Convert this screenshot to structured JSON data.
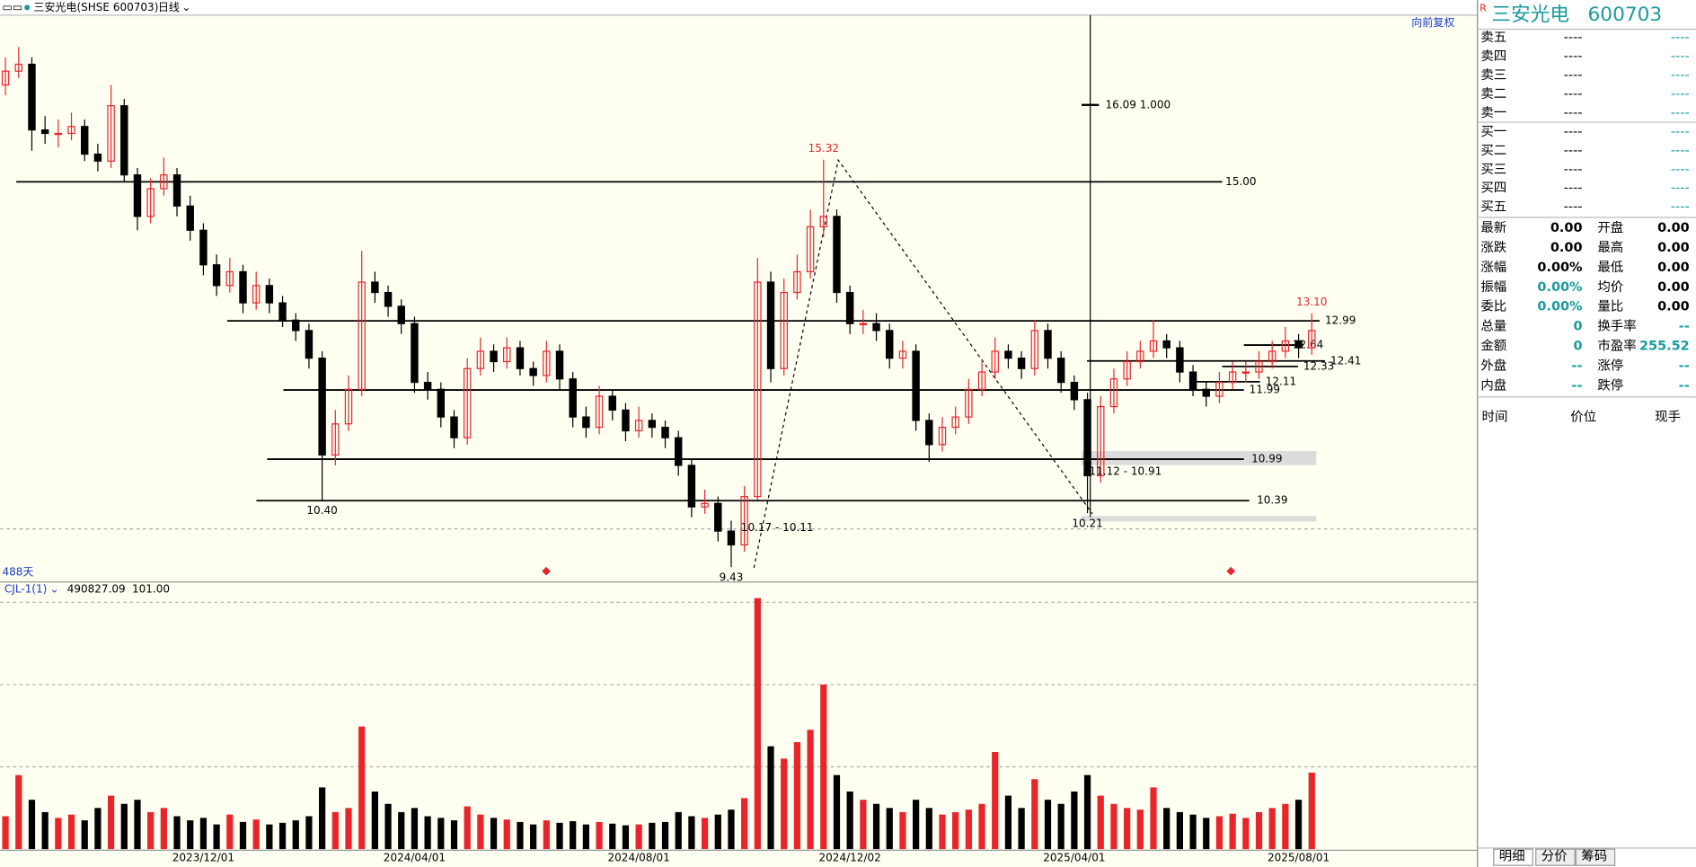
{
  "chart_data": {
    "type": "candlestick",
    "title": "三安光电(SHSE 600703)",
    "period": "日线",
    "adjust": "向前复权",
    "categories": [
      null,
      null,
      null,
      null,
      null,
      null,
      null,
      null,
      null,
      null,
      null,
      null,
      null,
      null,
      null,
      "2023/12/01",
      null,
      null,
      null,
      null,
      null,
      null,
      null,
      null,
      null,
      null,
      null,
      null,
      null,
      null,
      null,
      "2024/04/01",
      null,
      null,
      null,
      null,
      null,
      null,
      null,
      null,
      null,
      null,
      null,
      null,
      null,
      null,
      null,
      null,
      "2024/08/01",
      null,
      null,
      null,
      null,
      null,
      null,
      null,
      null,
      null,
      null,
      null,
      null,
      null,
      null,
      null,
      "2024/12/02",
      null,
      null,
      null,
      null,
      null,
      null,
      null,
      null,
      null,
      null,
      null,
      null,
      null,
      null,
      null,
      null,
      "2025/04/01",
      null,
      null,
      null,
      null,
      null,
      null,
      null,
      null,
      null,
      null,
      null,
      null,
      null,
      null,
      null,
      null,
      "2025/08/01",
      null
    ],
    "open": [
      16.4,
      16.6,
      16.7,
      15.75,
      15.7,
      15.7,
      15.8,
      15.4,
      15.3,
      16.1,
      15.1,
      14.5,
      14.9,
      15.1,
      14.65,
      14.3,
      13.8,
      13.5,
      13.7,
      13.25,
      13.5,
      13.25,
      13.0,
      12.85,
      12.45,
      11.05,
      11.5,
      12.0,
      13.55,
      13.4,
      13.2,
      12.95,
      12.1,
      12.0,
      11.6,
      11.3,
      12.3,
      12.55,
      12.4,
      12.6,
      12.3,
      12.2,
      12.55,
      12.15,
      11.6,
      11.45,
      11.9,
      11.7,
      11.4,
      11.55,
      11.45,
      11.3,
      10.9,
      10.3,
      10.35,
      9.95,
      9.75,
      10.45,
      13.55,
      12.3,
      13.4,
      13.7,
      14.35,
      14.5,
      13.4,
      12.95,
      12.95,
      12.85,
      12.45,
      12.55,
      11.55,
      11.2,
      11.45,
      11.6,
      12.0,
      12.25,
      12.55,
      12.45,
      12.3,
      12.85,
      12.45,
      12.1,
      11.85,
      10.75,
      11.75,
      12.15,
      12.4,
      12.55,
      12.7,
      12.6,
      12.25,
      12.0,
      11.9,
      12.1,
      12.25,
      12.25,
      12.4,
      12.55,
      12.7,
      12.6
    ],
    "high": [
      16.8,
      16.95,
      16.8,
      15.95,
      15.9,
      16.0,
      15.9,
      15.55,
      16.4,
      16.2,
      15.2,
      15.05,
      15.35,
      15.2,
      14.8,
      14.4,
      13.95,
      13.9,
      13.8,
      13.7,
      13.6,
      13.35,
      13.1,
      12.95,
      12.55,
      11.7,
      12.2,
      14.0,
      13.7,
      13.5,
      13.3,
      13.05,
      12.25,
      12.1,
      11.7,
      12.45,
      12.75,
      12.65,
      12.75,
      12.7,
      12.4,
      12.7,
      12.65,
      12.25,
      11.75,
      12.05,
      12.0,
      11.8,
      11.75,
      11.65,
      11.55,
      11.4,
      11.0,
      10.55,
      10.45,
      10.1,
      10.6,
      13.9,
      13.7,
      13.6,
      13.95,
      14.6,
      15.32,
      14.6,
      13.5,
      13.15,
      13.1,
      12.95,
      12.7,
      12.65,
      11.65,
      11.6,
      11.75,
      12.15,
      12.4,
      12.75,
      12.65,
      12.55,
      13.0,
      12.95,
      12.55,
      12.2,
      11.95,
      11.9,
      12.3,
      12.55,
      12.7,
      13.0,
      12.8,
      12.7,
      12.35,
      12.1,
      12.25,
      12.4,
      12.4,
      12.55,
      12.7,
      12.9,
      12.8,
      13.1
    ],
    "low": [
      16.25,
      16.5,
      15.45,
      15.55,
      15.5,
      15.6,
      15.3,
      15.15,
      15.2,
      15.0,
      14.3,
      14.4,
      14.8,
      14.5,
      14.15,
      13.65,
      13.35,
      13.4,
      13.1,
      13.15,
      13.1,
      12.9,
      12.7,
      12.3,
      10.4,
      10.9,
      11.4,
      11.9,
      13.25,
      13.05,
      12.8,
      11.95,
      11.85,
      11.45,
      11.15,
      11.2,
      12.2,
      12.25,
      12.3,
      12.2,
      12.05,
      12.1,
      12.0,
      11.45,
      11.3,
      11.35,
      11.55,
      11.25,
      11.3,
      11.3,
      11.15,
      10.75,
      10.15,
      10.2,
      9.8,
      9.43,
      9.65,
      10.4,
      12.1,
      12.2,
      13.3,
      13.6,
      14.2,
      13.25,
      12.8,
      12.8,
      12.7,
      12.3,
      12.3,
      11.4,
      10.95,
      11.1,
      11.35,
      11.5,
      11.9,
      12.15,
      12.3,
      12.15,
      12.2,
      12.3,
      11.95,
      11.7,
      10.21,
      10.65,
      11.65,
      12.05,
      12.3,
      12.45,
      12.45,
      12.1,
      11.9,
      11.75,
      11.8,
      12.0,
      12.1,
      12.15,
      12.3,
      12.45,
      12.45,
      12.5
    ],
    "close": [
      16.6,
      16.7,
      15.75,
      15.7,
      15.7,
      15.8,
      15.4,
      15.3,
      16.1,
      15.1,
      14.5,
      14.9,
      15.1,
      14.65,
      14.3,
      13.8,
      13.5,
      13.7,
      13.25,
      13.5,
      13.25,
      13.0,
      12.85,
      12.45,
      11.05,
      11.5,
      12.0,
      13.55,
      13.4,
      13.2,
      12.95,
      12.1,
      12.0,
      11.6,
      11.3,
      12.3,
      12.55,
      12.4,
      12.6,
      12.3,
      12.2,
      12.55,
      12.15,
      11.6,
      11.45,
      11.9,
      11.7,
      11.4,
      11.55,
      11.45,
      11.3,
      10.9,
      10.3,
      10.35,
      9.95,
      9.75,
      10.45,
      13.55,
      12.3,
      13.4,
      13.7,
      14.35,
      14.5,
      13.4,
      12.95,
      12.95,
      12.85,
      12.45,
      12.55,
      11.55,
      11.2,
      11.45,
      11.6,
      12.0,
      12.25,
      12.55,
      12.45,
      12.3,
      12.85,
      12.45,
      12.1,
      11.85,
      10.75,
      11.75,
      12.15,
      12.4,
      12.55,
      12.7,
      12.6,
      12.25,
      12.0,
      11.9,
      12.1,
      12.25,
      12.25,
      12.4,
      12.55,
      12.7,
      12.6,
      12.85
    ],
    "up_color": "#e8252b",
    "down_color": "#000000",
    "ylim": [
      9.23,
      17.41
    ],
    "levels": [
      {
        "value": 15,
        "label": "15.00"
      },
      {
        "value": 12.99,
        "label": "12.99"
      },
      {
        "value": 12.64,
        "label": "12.64"
      },
      {
        "value": 12.41,
        "label": "12.41"
      },
      {
        "value": 12.33,
        "label": "12.33"
      },
      {
        "value": 12.11,
        "label": "12.11"
      },
      {
        "value": 11.99,
        "label": "11.99"
      },
      {
        "value": 10.99,
        "label": "10.99"
      },
      {
        "value": 10.39,
        "label": "10.39"
      }
    ],
    "extremes": [
      15.32,
      {
        "value": 13.1,
        "label": "13.10"
      },
      {
        "value": 10.4,
        "label": "10.40"
      },
      9.43,
      10.21
    ],
    "annotations": [
      "16.09 1.000",
      "10.17 - 10.11",
      "11.12 - 10.91",
      "488天"
    ],
    "volume": {
      "indicator": "CJL-1(1)",
      "readout": [
        "490827.09",
        "101.00"
      ],
      "values": [
        400000,
        900000,
        600000,
        450000,
        380000,
        420000,
        350000,
        500000,
        650000,
        550000,
        600000,
        450000,
        500000,
        400000,
        350000,
        380000,
        300000,
        420000,
        330000,
        360000,
        300000,
        320000,
        350000,
        400000,
        750000,
        450000,
        500000,
        1490000,
        700000,
        550000,
        450000,
        500000,
        400000,
        380000,
        350000,
        520000,
        420000,
        380000,
        360000,
        330000,
        300000,
        350000,
        320000,
        340000,
        300000,
        330000,
        310000,
        290000,
        300000,
        320000,
        330000,
        450000,
        400000,
        380000,
        420000,
        480000,
        620000,
        3050000,
        1250000,
        1100000,
        1300000,
        1450000,
        2000000,
        900000,
        700000,
        600000,
        550000,
        500000,
        450000,
        600000,
        500000,
        420000,
        450000,
        480000,
        550000,
        1180000,
        650000,
        500000,
        850000,
        600000,
        550000,
        700000,
        900000,
        650000,
        550000,
        500000,
        480000,
        750000,
        500000,
        450000,
        420000,
        380000,
        400000,
        430000,
        380000,
        450000,
        500000,
        550000,
        600000,
        930000
      ],
      "ylim": [
        0,
        3220000
      ],
      "grid": [
        1000000,
        2000000,
        3000000
      ]
    }
  },
  "quote_panel": {
    "badge": "R",
    "name": "三安光电",
    "code": "600703",
    "asks": [
      {
        "label": "卖五",
        "price": "----",
        "volume": "----"
      },
      {
        "label": "卖四",
        "price": "----",
        "volume": "----"
      },
      {
        "label": "卖三",
        "price": "----",
        "volume": "----"
      },
      {
        "label": "卖二",
        "price": "----",
        "volume": "----"
      },
      {
        "label": "卖一",
        "price": "----",
        "volume": "----"
      }
    ],
    "bids": [
      {
        "label": "买一",
        "price": "----",
        "volume": "----"
      },
      {
        "label": "买二",
        "price": "----",
        "volume": "----"
      },
      {
        "label": "买三",
        "price": "----",
        "volume": "----"
      },
      {
        "label": "买四",
        "price": "----",
        "volume": "----"
      },
      {
        "label": "买五",
        "price": "----",
        "volume": "----"
      }
    ],
    "stats": [
      [
        "最新",
        "0.00",
        "开盘",
        "0.00"
      ],
      [
        "涨跌",
        "0.00",
        "最高",
        "0.00"
      ],
      [
        "涨幅",
        "0.00%",
        "最低",
        "0.00"
      ],
      [
        "振幅",
        "0.00%",
        "均价",
        "0.00"
      ],
      [
        "委比",
        "0.00%",
        "量比",
        "0.00"
      ],
      [
        "总量",
        "0",
        "换手率",
        "--"
      ],
      [
        "金额",
        "0",
        "市盈率",
        "255.52"
      ],
      [
        "外盘",
        "--",
        "涨停",
        "--"
      ],
      [
        "内盘",
        "--",
        "跌停",
        "--"
      ]
    ],
    "tick_header": [
      "时间",
      "价位",
      "现手"
    ],
    "tabs": [
      "明细",
      "分价",
      "筹码"
    ]
  }
}
